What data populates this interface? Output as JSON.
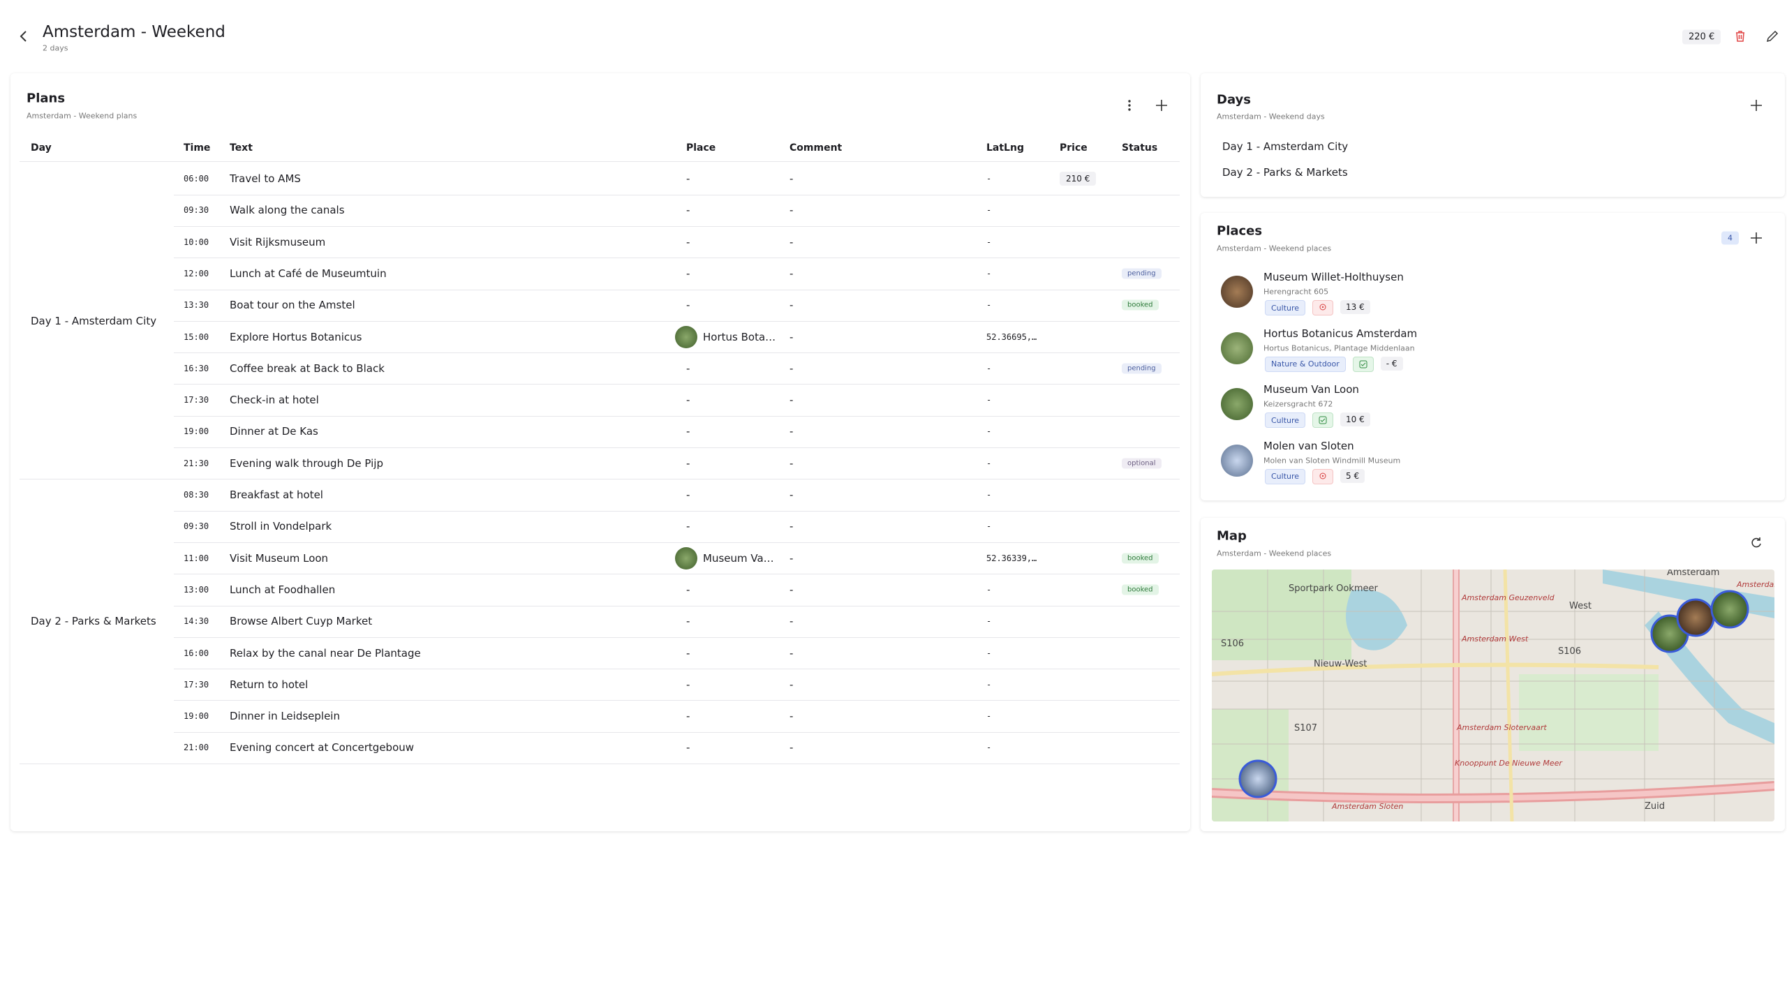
{
  "header": {
    "title": "Amsterdam - Weekend",
    "subtitle": "2 days",
    "total": "220 €"
  },
  "plans": {
    "title": "Plans",
    "subtitle": "Amsterdam - Weekend plans",
    "columns": [
      "Day",
      "Time",
      "Text",
      "Place",
      "Comment",
      "LatLng",
      "Price",
      "Status"
    ],
    "days": [
      {
        "label": "Day 1 - Amsterdam City",
        "rows": [
          {
            "time": "06:00",
            "text": "Travel to AMS",
            "place": "-",
            "comment": "-",
            "latlng": "-",
            "price": "210 €",
            "status": null
          },
          {
            "time": "09:30",
            "text": "Walk along the canals",
            "place": "-",
            "comment": "-",
            "latlng": "-",
            "price": null,
            "status": null
          },
          {
            "time": "10:00",
            "text": "Visit Rijksmuseum",
            "place": "-",
            "comment": "-",
            "latlng": "-",
            "price": null,
            "status": null
          },
          {
            "time": "12:00",
            "text": "Lunch at Café de Museumtuin",
            "place": "-",
            "comment": "-",
            "latlng": "-",
            "price": null,
            "status": "pending"
          },
          {
            "time": "13:30",
            "text": "Boat tour on the Amstel",
            "place": "-",
            "comment": "-",
            "latlng": "-",
            "price": null,
            "status": "booked"
          },
          {
            "time": "15:00",
            "text": "Explore Hortus Botanicus",
            "place": "Hortus Bota…",
            "comment": "-",
            "latlng": "52.36695,…",
            "price": null,
            "status": null
          },
          {
            "time": "16:30",
            "text": "Coffee break at Back to Black",
            "place": "-",
            "comment": "-",
            "latlng": "-",
            "price": null,
            "status": "pending"
          },
          {
            "time": "17:30",
            "text": "Check-in at hotel",
            "place": "-",
            "comment": "-",
            "latlng": "-",
            "price": null,
            "status": null
          },
          {
            "time": "19:00",
            "text": "Dinner at De Kas",
            "place": "-",
            "comment": "-",
            "latlng": "-",
            "price": null,
            "status": null
          },
          {
            "time": "21:30",
            "text": "Evening walk through De Pijp",
            "place": "-",
            "comment": "-",
            "latlng": "-",
            "price": null,
            "status": "optional"
          }
        ]
      },
      {
        "label": "Day 2 - Parks & Markets",
        "rows": [
          {
            "time": "08:30",
            "text": "Breakfast at hotel",
            "place": "-",
            "comment": "-",
            "latlng": "-",
            "price": null,
            "status": null
          },
          {
            "time": "09:30",
            "text": "Stroll in Vondelpark",
            "place": "-",
            "comment": "-",
            "latlng": "-",
            "price": null,
            "status": null
          },
          {
            "time": "11:00",
            "text": "Visit Museum Loon",
            "place": "Museum Va…",
            "comment": "-",
            "latlng": "52.36339,…",
            "price": null,
            "status": "booked"
          },
          {
            "time": "13:00",
            "text": "Lunch at Foodhallen",
            "place": "-",
            "comment": "-",
            "latlng": "-",
            "price": null,
            "status": "booked"
          },
          {
            "time": "14:30",
            "text": "Browse Albert Cuyp Market",
            "place": "-",
            "comment": "-",
            "latlng": "-",
            "price": null,
            "status": null
          },
          {
            "time": "16:00",
            "text": "Relax by the canal near De Plantage",
            "place": "-",
            "comment": "-",
            "latlng": "-",
            "price": null,
            "status": null
          },
          {
            "time": "17:30",
            "text": "Return to hotel",
            "place": "-",
            "comment": "-",
            "latlng": "-",
            "price": null,
            "status": null
          },
          {
            "time": "19:00",
            "text": "Dinner in Leidseplein",
            "place": "-",
            "comment": "-",
            "latlng": "-",
            "price": null,
            "status": null
          },
          {
            "time": "21:00",
            "text": "Evening concert at Concertgebouw",
            "place": "-",
            "comment": "-",
            "latlng": "-",
            "price": null,
            "status": null
          }
        ]
      }
    ]
  },
  "days_panel": {
    "title": "Days",
    "subtitle": "Amsterdam - Weekend days",
    "items": [
      "Day 1 - Amsterdam City",
      "Day 2 - Parks & Markets"
    ]
  },
  "places": {
    "title": "Places",
    "subtitle": "Amsterdam - Weekend places",
    "count": "4",
    "items": [
      {
        "name": "Museum Willet-Holthuysen",
        "address": "Herengracht 605",
        "category": "Culture",
        "visited": false,
        "price": "13 €"
      },
      {
        "name": "Hortus Botanicus Amsterdam",
        "address": "Hortus Botanicus, Plantage Middenlaan",
        "category": "Nature & Outdoor",
        "visited": true,
        "price": "- €"
      },
      {
        "name": "Museum Van Loon",
        "address": "Keizersgracht 672",
        "category": "Culture",
        "visited": true,
        "price": "10 €"
      },
      {
        "name": "Molen van Sloten",
        "address": "Molen van Sloten Windmill Museum",
        "category": "Culture",
        "visited": false,
        "price": "5 €"
      }
    ]
  },
  "map": {
    "title": "Map",
    "subtitle": "Amsterdam - Weekend places",
    "labels": [
      "Amsterdam",
      "West",
      "Nieuw-West",
      "S106",
      "S106",
      "S107",
      "Zuid",
      "Amsterdam Geuzenveld",
      "Amsterdam West",
      "Amsterdam Slotervaart",
      "Knooppunt De Nieuwe Meer",
      "Amsterdam Centraal",
      "Amsterdam Sloten",
      "Sportpark Ookmeer"
    ]
  }
}
